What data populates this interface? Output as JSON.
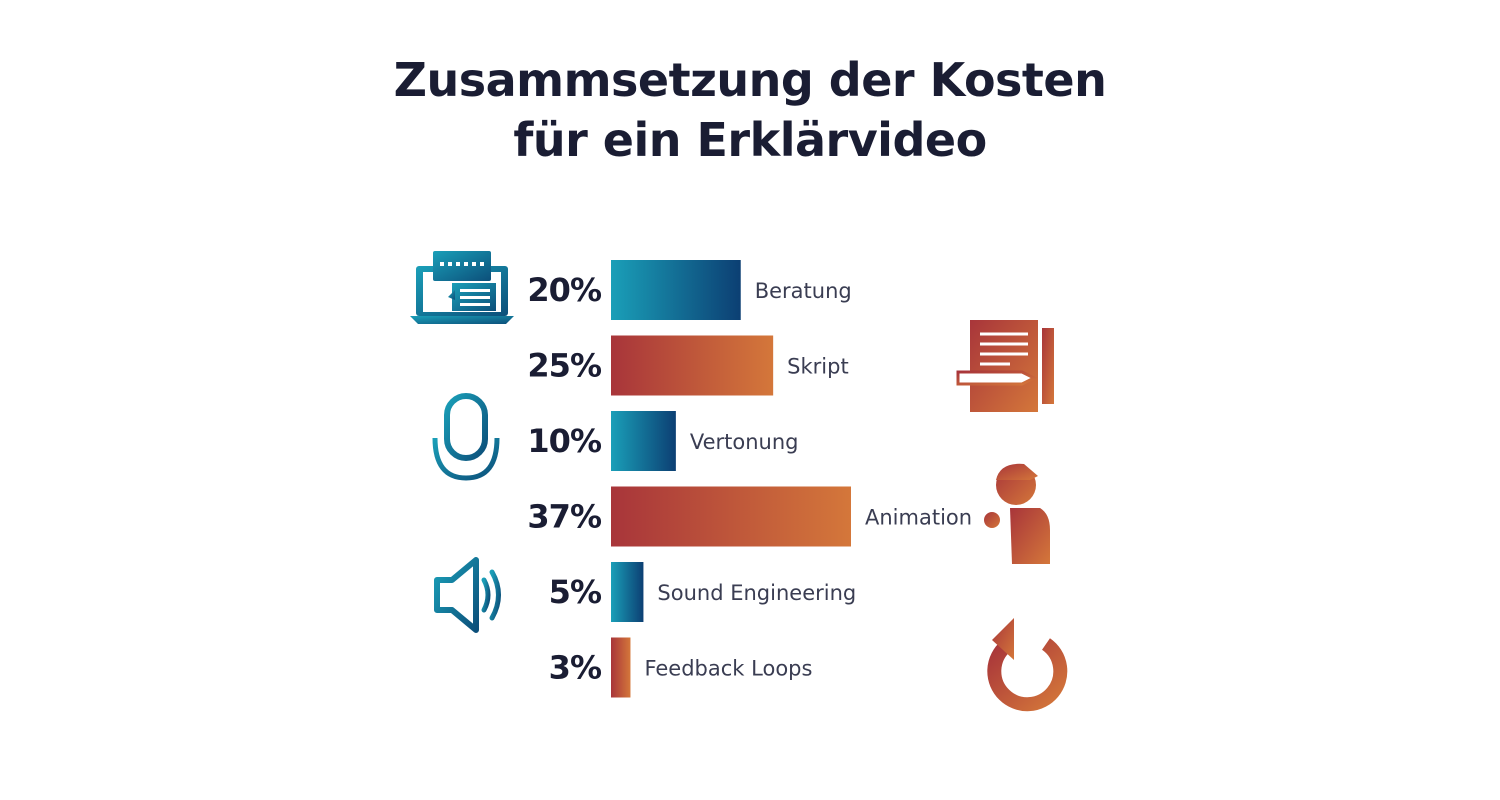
{
  "title": {
    "line1": "Zusammsetzung der Kosten",
    "line2": "für ein Erklärvideo"
  },
  "colors": {
    "blue_start": "#1a9fb8",
    "blue_end": "#0c3f73",
    "orange_start": "#a8353a",
    "orange_end": "#d4773a",
    "text_dark": "#1a1d33"
  },
  "icons": {
    "left": [
      "laptop-chat-icon",
      "microphone-icon",
      "speaker-icon"
    ],
    "right": [
      "document-pencil-icon",
      "animated-person-icon",
      "refresh-icon"
    ]
  },
  "chart_data": {
    "type": "bar",
    "orientation": "horizontal",
    "categories": [
      "Beratung",
      "Skript",
      "Vertonung",
      "Animation",
      "Sound Engineering",
      "Feedback Loops"
    ],
    "values": [
      20,
      25,
      10,
      37,
      5,
      3
    ],
    "value_labels": [
      "20%",
      "25%",
      "10%",
      "37%",
      "5%",
      "3%"
    ],
    "bar_colors": [
      "blue",
      "orange",
      "blue",
      "orange",
      "blue",
      "orange"
    ],
    "xlim": [
      0,
      37
    ],
    "grid": false,
    "legend": "none"
  }
}
